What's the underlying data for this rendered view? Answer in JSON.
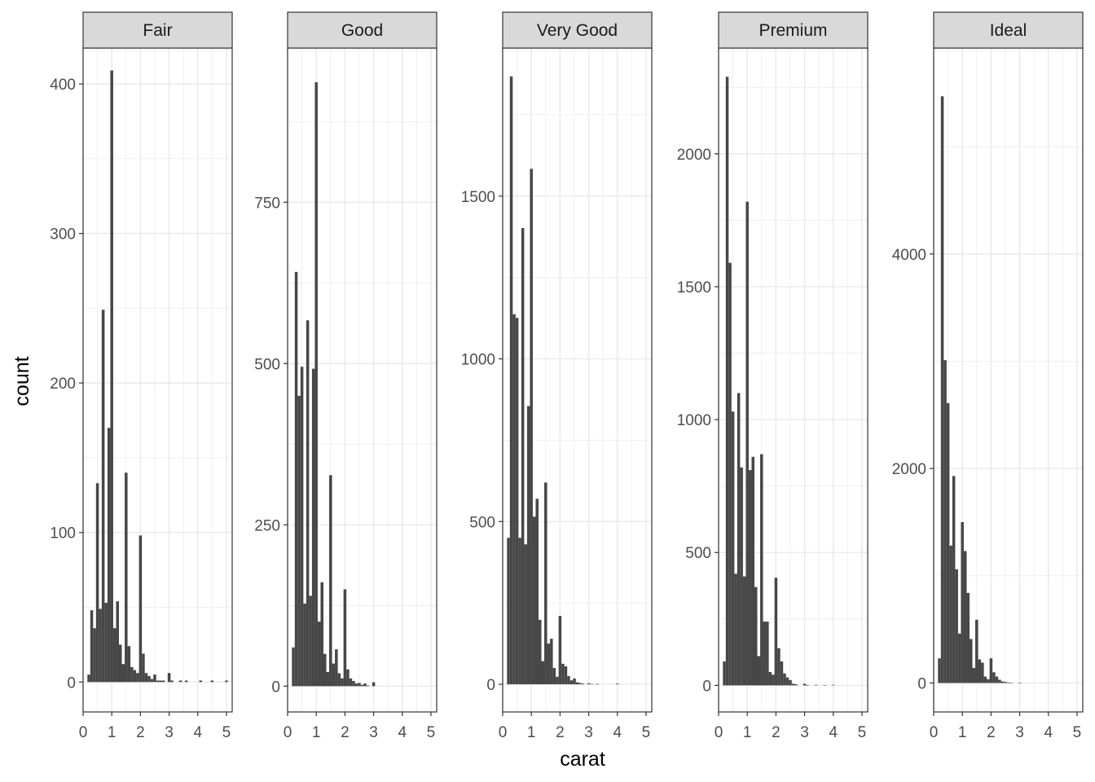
{
  "chart_data": {
    "type": "bar",
    "subtype": "faceted-histogram",
    "xlabel": "carat",
    "ylabel": "count",
    "xlim": [
      0,
      5.2
    ],
    "x_ticks": [
      0,
      1,
      2,
      3,
      4,
      5
    ],
    "bin_width": 0.1,
    "bin_start": 0.2,
    "bar_color": "#474747",
    "grid": true,
    "grid_color": "#ebebeb",
    "strip_fill": "#d9d9d9",
    "panels": [
      {
        "name": "Fair",
        "ylim": [
          -20,
          424
        ],
        "y_ticks": [
          0,
          100,
          200,
          300,
          400
        ],
        "bins": [
          {
            "x": 0.2,
            "y": 5
          },
          {
            "x": 0.3,
            "y": 48
          },
          {
            "x": 0.4,
            "y": 36
          },
          {
            "x": 0.5,
            "y": 133
          },
          {
            "x": 0.6,
            "y": 49
          },
          {
            "x": 0.7,
            "y": 249
          },
          {
            "x": 0.8,
            "y": 53
          },
          {
            "x": 0.9,
            "y": 170
          },
          {
            "x": 1.0,
            "y": 409
          },
          {
            "x": 1.1,
            "y": 36
          },
          {
            "x": 1.2,
            "y": 54
          },
          {
            "x": 1.3,
            "y": 25
          },
          {
            "x": 1.4,
            "y": 12
          },
          {
            "x": 1.5,
            "y": 140
          },
          {
            "x": 1.6,
            "y": 24
          },
          {
            "x": 1.7,
            "y": 10
          },
          {
            "x": 1.8,
            "y": 8
          },
          {
            "x": 1.9,
            "y": 6
          },
          {
            "x": 2.0,
            "y": 98
          },
          {
            "x": 2.1,
            "y": 19
          },
          {
            "x": 2.2,
            "y": 6
          },
          {
            "x": 2.3,
            "y": 4
          },
          {
            "x": 2.4,
            "y": 2
          },
          {
            "x": 2.5,
            "y": 5
          },
          {
            "x": 2.6,
            "y": 1
          },
          {
            "x": 2.7,
            "y": 1
          },
          {
            "x": 2.8,
            "y": 1
          },
          {
            "x": 3.0,
            "y": 6
          },
          {
            "x": 3.1,
            "y": 1
          },
          {
            "x": 3.4,
            "y": 1
          },
          {
            "x": 3.6,
            "y": 1
          },
          {
            "x": 4.1,
            "y": 1
          },
          {
            "x": 4.5,
            "y": 1
          },
          {
            "x": 5.0,
            "y": 1
          }
        ]
      },
      {
        "name": "Good",
        "ylim": [
          -40,
          989
        ],
        "y_ticks": [
          0,
          250,
          500,
          750
        ],
        "bins": [
          {
            "x": 0.2,
            "y": 60
          },
          {
            "x": 0.3,
            "y": 642
          },
          {
            "x": 0.4,
            "y": 450
          },
          {
            "x": 0.5,
            "y": 495
          },
          {
            "x": 0.6,
            "y": 128
          },
          {
            "x": 0.7,
            "y": 567
          },
          {
            "x": 0.8,
            "y": 140
          },
          {
            "x": 0.9,
            "y": 492
          },
          {
            "x": 1.0,
            "y": 936
          },
          {
            "x": 1.1,
            "y": 100
          },
          {
            "x": 1.2,
            "y": 161
          },
          {
            "x": 1.3,
            "y": 50
          },
          {
            "x": 1.4,
            "y": 22
          },
          {
            "x": 1.5,
            "y": 327
          },
          {
            "x": 1.6,
            "y": 35
          },
          {
            "x": 1.7,
            "y": 57
          },
          {
            "x": 1.8,
            "y": 20
          },
          {
            "x": 1.9,
            "y": 12
          },
          {
            "x": 2.0,
            "y": 150
          },
          {
            "x": 2.1,
            "y": 26
          },
          {
            "x": 2.2,
            "y": 12
          },
          {
            "x": 2.3,
            "y": 8
          },
          {
            "x": 2.4,
            "y": 4
          },
          {
            "x": 2.5,
            "y": 5
          },
          {
            "x": 2.6,
            "y": 2
          },
          {
            "x": 2.7,
            "y": 4
          },
          {
            "x": 2.8,
            "y": 1
          },
          {
            "x": 3.0,
            "y": 6
          }
        ]
      },
      {
        "name": "Very Good",
        "ylim": [
          -85,
          1955
        ],
        "y_ticks": [
          0,
          500,
          1000,
          1500
        ],
        "bins": [
          {
            "x": 0.2,
            "y": 450
          },
          {
            "x": 0.3,
            "y": 1868
          },
          {
            "x": 0.4,
            "y": 1137
          },
          {
            "x": 0.5,
            "y": 1126
          },
          {
            "x": 0.6,
            "y": 450
          },
          {
            "x": 0.7,
            "y": 1402
          },
          {
            "x": 0.8,
            "y": 430
          },
          {
            "x": 0.9,
            "y": 855
          },
          {
            "x": 1.0,
            "y": 1584
          },
          {
            "x": 1.1,
            "y": 515
          },
          {
            "x": 1.2,
            "y": 570
          },
          {
            "x": 1.3,
            "y": 198
          },
          {
            "x": 1.4,
            "y": 71
          },
          {
            "x": 1.5,
            "y": 620
          },
          {
            "x": 1.6,
            "y": 125
          },
          {
            "x": 1.7,
            "y": 140
          },
          {
            "x": 1.8,
            "y": 50
          },
          {
            "x": 1.9,
            "y": 23
          },
          {
            "x": 2.0,
            "y": 210
          },
          {
            "x": 2.1,
            "y": 63
          },
          {
            "x": 2.2,
            "y": 55
          },
          {
            "x": 2.3,
            "y": 25
          },
          {
            "x": 2.4,
            "y": 12
          },
          {
            "x": 2.5,
            "y": 18
          },
          {
            "x": 2.6,
            "y": 6
          },
          {
            "x": 2.7,
            "y": 4
          },
          {
            "x": 2.8,
            "y": 2
          },
          {
            "x": 3.0,
            "y": 3
          },
          {
            "x": 3.1,
            "y": 1
          },
          {
            "x": 3.3,
            "y": 1
          },
          {
            "x": 4.0,
            "y": 2
          }
        ]
      },
      {
        "name": "Premium",
        "ylim": [
          -100,
          2398
        ],
        "y_ticks": [
          0,
          500,
          1000,
          1500,
          2000
        ],
        "bins": [
          {
            "x": 0.2,
            "y": 90
          },
          {
            "x": 0.3,
            "y": 2290
          },
          {
            "x": 0.4,
            "y": 1590
          },
          {
            "x": 0.5,
            "y": 1030
          },
          {
            "x": 0.6,
            "y": 420
          },
          {
            "x": 0.7,
            "y": 1100
          },
          {
            "x": 0.8,
            "y": 820
          },
          {
            "x": 0.9,
            "y": 410
          },
          {
            "x": 1.0,
            "y": 1820
          },
          {
            "x": 1.1,
            "y": 810
          },
          {
            "x": 1.2,
            "y": 860
          },
          {
            "x": 1.3,
            "y": 370
          },
          {
            "x": 1.4,
            "y": 110
          },
          {
            "x": 1.5,
            "y": 870
          },
          {
            "x": 1.6,
            "y": 240
          },
          {
            "x": 1.7,
            "y": 240
          },
          {
            "x": 1.8,
            "y": 50
          },
          {
            "x": 1.9,
            "y": 40
          },
          {
            "x": 2.0,
            "y": 405
          },
          {
            "x": 2.1,
            "y": 140
          },
          {
            "x": 2.2,
            "y": 90
          },
          {
            "x": 2.3,
            "y": 45
          },
          {
            "x": 2.4,
            "y": 30
          },
          {
            "x": 2.5,
            "y": 20
          },
          {
            "x": 2.6,
            "y": 6
          },
          {
            "x": 2.7,
            "y": 4
          },
          {
            "x": 3.0,
            "y": 6
          },
          {
            "x": 3.1,
            "y": 1
          },
          {
            "x": 3.4,
            "y": 2
          },
          {
            "x": 3.7,
            "y": 1
          },
          {
            "x": 4.0,
            "y": 2
          }
        ]
      },
      {
        "name": "Ideal",
        "ylim": [
          -270,
          5920
        ],
        "y_ticks": [
          0,
          2000,
          4000
        ],
        "bins": [
          {
            "x": 0.2,
            "y": 230
          },
          {
            "x": 0.3,
            "y": 5470
          },
          {
            "x": 0.4,
            "y": 3010
          },
          {
            "x": 0.5,
            "y": 2610
          },
          {
            "x": 0.6,
            "y": 1280
          },
          {
            "x": 0.7,
            "y": 1930
          },
          {
            "x": 0.8,
            "y": 1060
          },
          {
            "x": 0.9,
            "y": 460
          },
          {
            "x": 1.0,
            "y": 1500
          },
          {
            "x": 1.1,
            "y": 1230
          },
          {
            "x": 1.2,
            "y": 840
          },
          {
            "x": 1.3,
            "y": 410
          },
          {
            "x": 1.4,
            "y": 140
          },
          {
            "x": 1.5,
            "y": 590
          },
          {
            "x": 1.6,
            "y": 220
          },
          {
            "x": 1.7,
            "y": 190
          },
          {
            "x": 1.8,
            "y": 60
          },
          {
            "x": 1.9,
            "y": 35
          },
          {
            "x": 2.0,
            "y": 230
          },
          {
            "x": 2.1,
            "y": 100
          },
          {
            "x": 2.2,
            "y": 60
          },
          {
            "x": 2.3,
            "y": 30
          },
          {
            "x": 2.4,
            "y": 15
          },
          {
            "x": 2.5,
            "y": 10
          },
          {
            "x": 2.6,
            "y": 5
          },
          {
            "x": 2.7,
            "y": 3
          },
          {
            "x": 3.0,
            "y": 2
          }
        ]
      }
    ]
  }
}
